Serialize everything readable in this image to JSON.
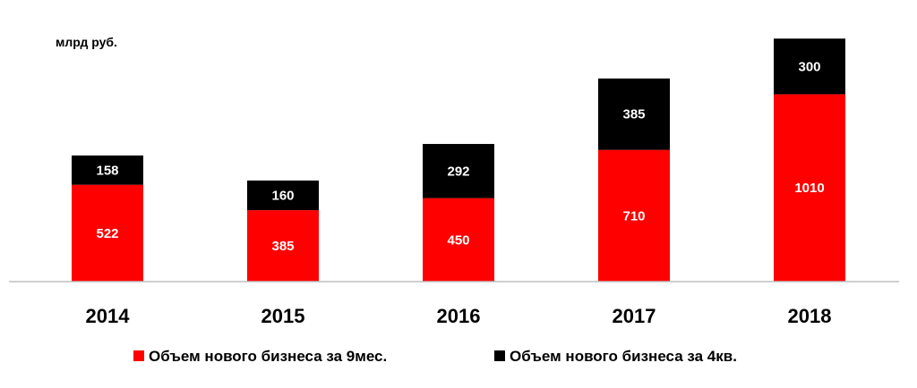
{
  "chart_data": {
    "type": "bar",
    "stacked": true,
    "unit_label": "млрд  руб.",
    "categories": [
      "2014",
      "2015",
      "2016",
      "2017",
      "2018"
    ],
    "series": [
      {
        "name": "Объем нового бизнеса за 9мес.",
        "color": "#ff0000",
        "values": [
          522,
          385,
          450,
          710,
          1010
        ]
      },
      {
        "name": "Объем нового бизнеса за 4кв.",
        "color": "#000000",
        "values": [
          158,
          160,
          292,
          385,
          300
        ]
      }
    ],
    "ylim": [
      0,
      1310
    ],
    "grid": false,
    "legend": "bottom",
    "data_labels": true,
    "axis_color": "#bfbfbf"
  }
}
